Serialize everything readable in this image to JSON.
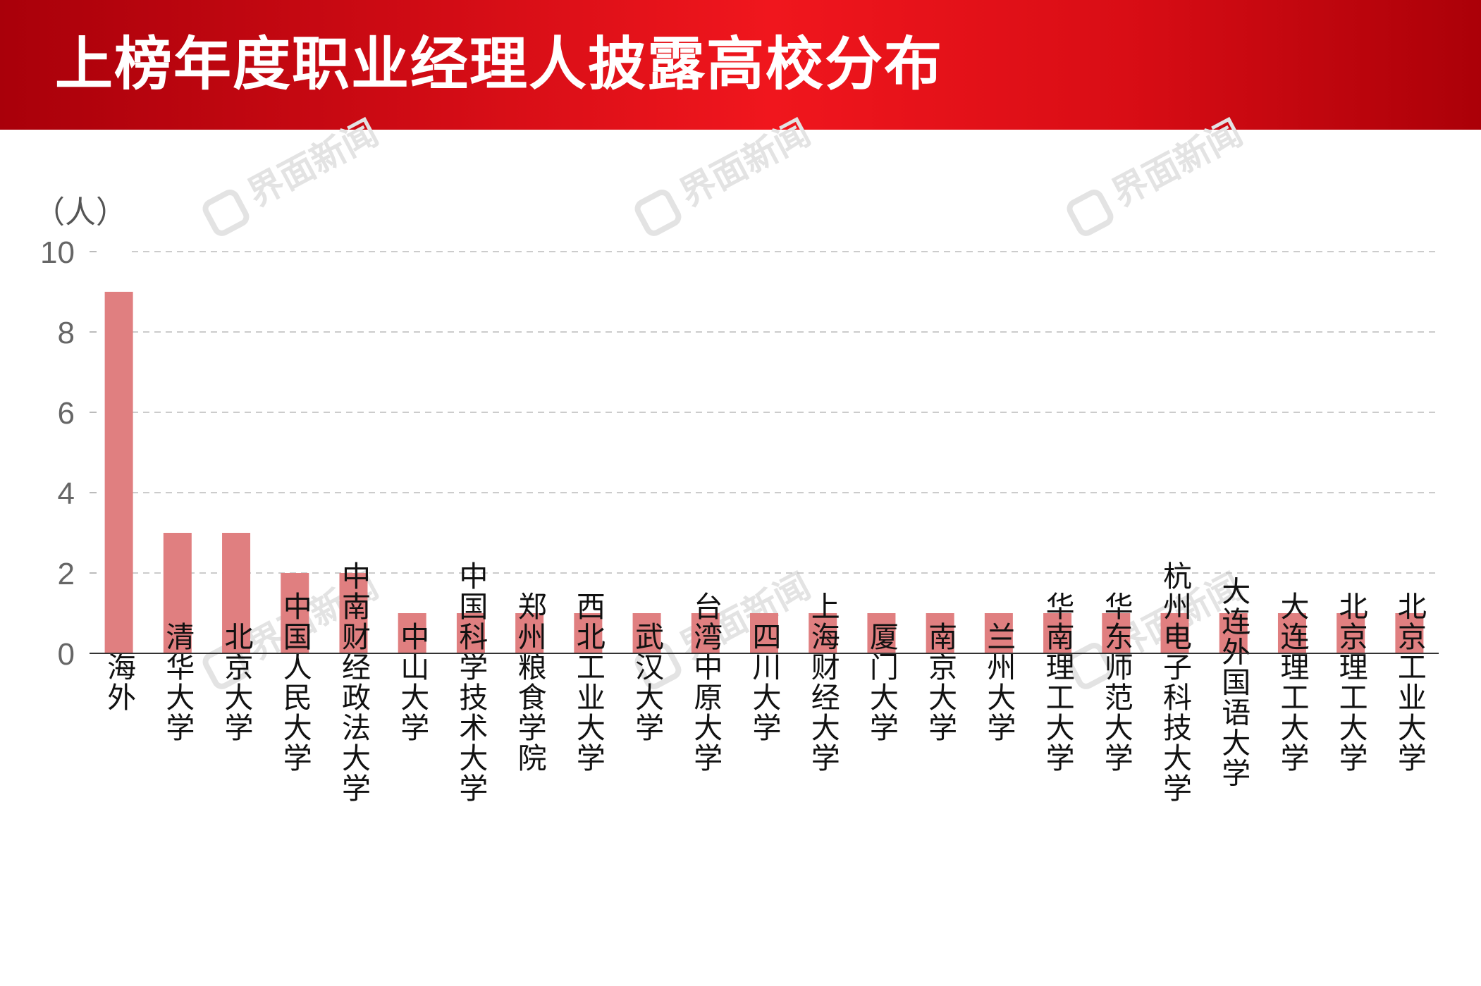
{
  "header": {
    "title": "上榜年度职业经理人披露高校分布"
  },
  "watermark": {
    "text": "界面新闻"
  },
  "colors": {
    "bar": "#e07f80",
    "header": "#e0141b",
    "axis": "#333333",
    "grid": "#bbbbbb"
  },
  "chart_data": {
    "type": "bar",
    "title": "上榜年度职业经理人披露高校分布",
    "ylabel": "（人）",
    "xlabel": "",
    "ylim": [
      0,
      10
    ],
    "yticks": [
      0,
      2,
      4,
      6,
      8,
      10
    ],
    "grid": true,
    "categories": [
      "海外",
      "清华大学",
      "北京大学",
      "中国人民大学",
      "中南财经政法大学",
      "中山大学",
      "中国科学技术大学",
      "郑州粮食学院",
      "西北工业大学",
      "武汉大学",
      "台湾中原大学",
      "四川大学",
      "上海财经大学",
      "厦门大学",
      "南京大学",
      "兰州大学",
      "华南理工大学",
      "华东师范大学",
      "杭州电子科技大学",
      "大连外国语大学",
      "大连理工大学",
      "北京理工大学",
      "北京工业大学"
    ],
    "values": [
      9,
      3,
      3,
      2,
      2,
      1,
      1,
      1,
      1,
      1,
      1,
      1,
      1,
      1,
      1,
      1,
      1,
      1,
      1,
      1,
      1,
      1,
      1
    ]
  }
}
